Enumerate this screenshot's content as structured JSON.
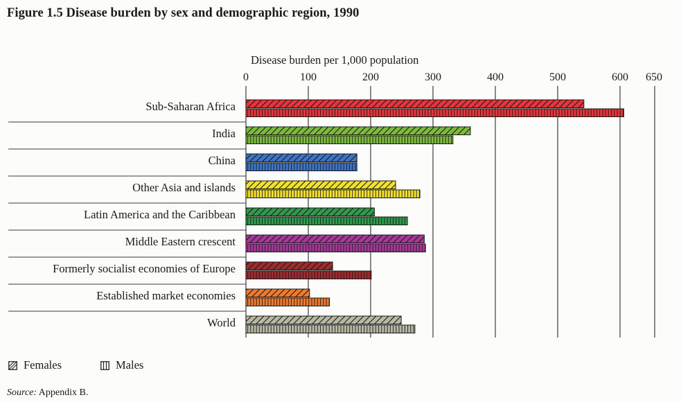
{
  "figure": {
    "title": "Figure 1.5  Disease burden by sex and demographic region,  1990",
    "source_label": "Source:",
    "source_text": "Appendix B."
  },
  "chart_data": {
    "type": "bar",
    "orientation": "horizontal",
    "title": "Figure 1.5  Disease burden by sex and demographic region,  1990",
    "xlabel": "Disease burden per 1,000 population",
    "ylabel": "",
    "xlim": [
      0,
      650
    ],
    "xticks": [
      0,
      100,
      200,
      300,
      400,
      500,
      600,
      650
    ],
    "xtick_labels": [
      "0",
      "100",
      "200",
      "300",
      "400",
      "500",
      "600",
      "650"
    ],
    "axis_position": "top",
    "grid": true,
    "legend_position": "bottom-left",
    "categories": [
      "Sub-Saharan Africa",
      "India",
      "China",
      "Other Asia and islands",
      "Latin America and the Caribbean",
      "Middle Eastern crescent",
      "Formerly socialist economies of Europe",
      "Established market economies",
      "World"
    ],
    "category_colors": [
      "#e8343a",
      "#7cbb3c",
      "#3d74c8",
      "#f1e02c",
      "#2f9a4c",
      "#a8379a",
      "#a02a2e",
      "#f07a2c",
      "#b7b9a4"
    ],
    "series": [
      {
        "name": "Females",
        "pattern": "diagonal-hatch",
        "values": [
          542,
          360,
          178,
          240,
          206,
          286,
          139,
          102,
          249
        ]
      },
      {
        "name": "Males",
        "pattern": "vertical-lines",
        "values": [
          606,
          332,
          178,
          279,
          259,
          288,
          201,
          134,
          271
        ]
      }
    ]
  }
}
